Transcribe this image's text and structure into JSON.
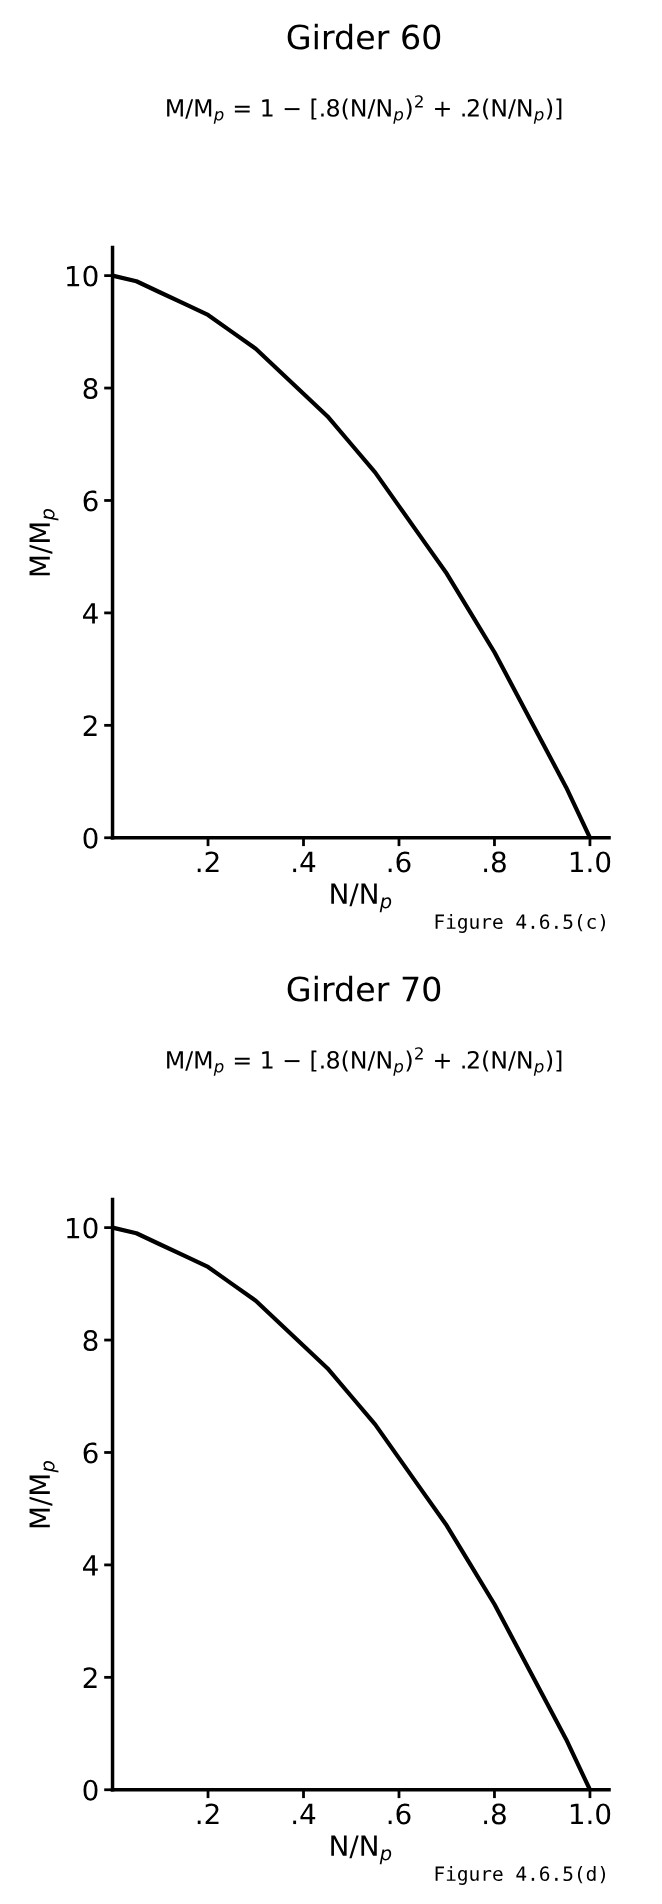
{
  "chart_data": [
    {
      "type": "line",
      "title": "Girder 60",
      "subtitle": "M/M$_{p}$ = 1 − [.8(N/N$_{p}$)$^{2}$ + .2(N/N$_{p}$)]",
      "xlabel": "N/N$_{p}$",
      "ylabel": "M/M$_{p}$",
      "x": [
        0,
        0.05,
        0.1,
        0.15,
        0.2,
        0.25,
        0.3,
        0.35,
        0.4,
        0.45,
        0.5,
        0.55,
        0.6,
        0.65,
        0.7,
        0.75,
        0.8,
        0.85,
        0.9,
        0.95,
        1.0
      ],
      "series": [
        {
          "color": "#000000",
          "values": [
            10.0,
            9.9,
            9.7,
            9.5,
            9.3,
            9.0,
            8.7,
            8.3,
            7.9,
            7.5,
            7.0,
            6.5,
            5.9,
            5.3,
            4.7,
            4.0,
            3.3,
            2.5,
            1.7,
            0.9,
            0.0
          ]
        }
      ],
      "xlim": [
        0,
        1.04
      ],
      "ylim": [
        0,
        10.5
      ],
      "xticks": [
        {
          "value": 0.2,
          "label": ".2"
        },
        {
          "value": 0.4,
          "label": ".4"
        },
        {
          "value": 0.6,
          "label": ".6"
        },
        {
          "value": 0.8,
          "label": ".8"
        },
        {
          "value": 1.0,
          "label": "1.0"
        }
      ],
      "yticks": [
        0,
        2,
        4,
        6,
        8,
        10
      ],
      "annotations": [
        "Figure 4.6.5(c)"
      ]
    },
    {
      "type": "line",
      "title": "Girder 70",
      "subtitle": "M/M$_{p}$ = 1 − [.8(N/N$_{p}$)$^{2}$ + .2(N/N$_{p}$)]",
      "xlabel": "N/N$_{p}$",
      "ylabel": "M/M$_{p}$",
      "x": [
        0,
        0.05,
        0.1,
        0.15,
        0.2,
        0.25,
        0.3,
        0.35,
        0.4,
        0.45,
        0.5,
        0.55,
        0.6,
        0.65,
        0.7,
        0.75,
        0.8,
        0.85,
        0.9,
        0.95,
        1.0
      ],
      "series": [
        {
          "color": "#000000",
          "values": [
            10.0,
            9.9,
            9.7,
            9.5,
            9.3,
            9.0,
            8.7,
            8.3,
            7.9,
            7.5,
            7.0,
            6.5,
            5.9,
            5.3,
            4.7,
            4.0,
            3.3,
            2.5,
            1.7,
            0.9,
            0.0
          ]
        }
      ],
      "xlim": [
        0,
        1.04
      ],
      "ylim": [
        0,
        10.5
      ],
      "xticks": [
        {
          "value": 0.2,
          "label": ".2"
        },
        {
          "value": 0.4,
          "label": ".4"
        },
        {
          "value": 0.6,
          "label": ".6"
        },
        {
          "value": 0.8,
          "label": ".8"
        },
        {
          "value": 1.0,
          "label": "1.0"
        }
      ],
      "yticks": [
        0,
        2,
        4,
        6,
        8,
        10
      ],
      "annotations": [
        "Figure 4.6.5(d)"
      ]
    }
  ]
}
